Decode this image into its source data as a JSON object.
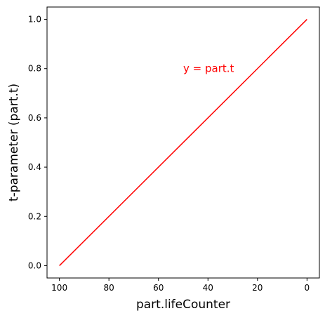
{
  "chart_data": {
    "type": "line",
    "xlabel": "part.lifeCounter",
    "ylabel": "t-parameter (part.t)",
    "xlim": [
      105,
      -5
    ],
    "ylim": [
      -0.05,
      1.05
    ],
    "x_inverted": true,
    "xticks": [
      100,
      80,
      60,
      40,
      20,
      0
    ],
    "yticks": [
      0.0,
      0.2,
      0.4,
      0.6,
      0.8,
      1.0
    ],
    "xtick_labels": [
      "100",
      "80",
      "60",
      "40",
      "20",
      "0"
    ],
    "ytick_labels": [
      "0.0",
      "0.2",
      "0.4",
      "0.6",
      "0.8",
      "1.0"
    ],
    "grid": false,
    "series": [
      {
        "color": "#ff0000",
        "x": [
          100,
          0
        ],
        "y": [
          0.0,
          1.0
        ]
      }
    ],
    "annotations": [
      {
        "text": "y = part.t",
        "x": 50,
        "y": 0.8,
        "color": "#ff0000"
      }
    ]
  }
}
